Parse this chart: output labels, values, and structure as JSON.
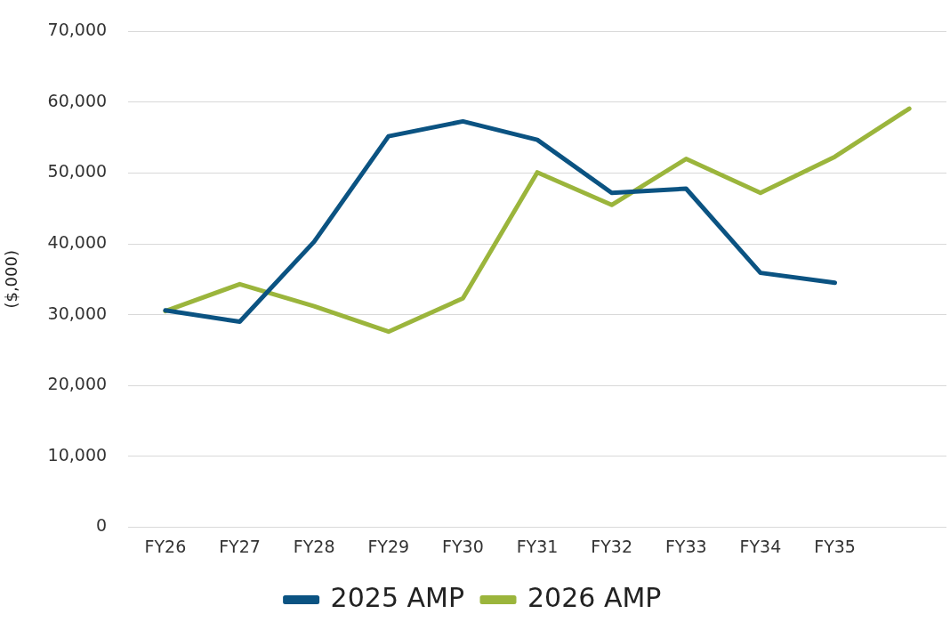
{
  "chart_data": {
    "type": "line",
    "ylabel": "($,000)",
    "categories": [
      "FY26",
      "FY27",
      "FY28",
      "FY29",
      "FY30",
      "FY31",
      "FY32",
      "FY33",
      "FY34",
      "FY35",
      null
    ],
    "series": [
      {
        "name": "2025 AMP",
        "color": "#0b5382",
        "values": [
          30600,
          29000,
          40300,
          55200,
          57300,
          54700,
          47200,
          47800,
          35900,
          34500,
          null
        ]
      },
      {
        "name": "2026 AMP",
        "color": "#9bb53c",
        "values": [
          30500,
          34300,
          31200,
          27600,
          32300,
          50100,
          45500,
          52000,
          47200,
          52300,
          59100
        ]
      }
    ],
    "ylim": [
      0,
      70000
    ],
    "yticks": [
      {
        "value": 0,
        "label": "0"
      },
      {
        "value": 10000,
        "label": "10,000"
      },
      {
        "value": 20000,
        "label": "20,000"
      },
      {
        "value": 30000,
        "label": "30,000"
      },
      {
        "value": 40000,
        "label": "40,000"
      },
      {
        "value": 50000,
        "label": "50,000"
      },
      {
        "value": 60000,
        "label": "60,000"
      },
      {
        "value": 70000,
        "label": "70,000"
      }
    ],
    "grid": "y",
    "legend": "bottom",
    "marker": "none",
    "line_style": "solid"
  }
}
